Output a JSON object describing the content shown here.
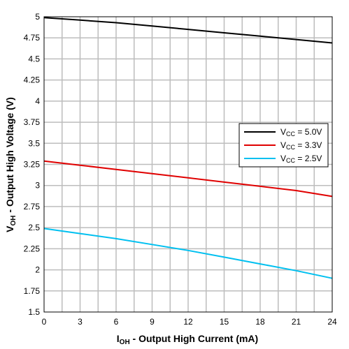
{
  "chart_data": {
    "type": "line",
    "xlabel": {
      "main": "I",
      "sub": "OH",
      "rest": " - Output High Current (mA)"
    },
    "ylabel": {
      "main": "V",
      "sub": "OH",
      "rest": " - Output High Voltage (V)"
    },
    "xlim": [
      0,
      24
    ],
    "ylim": [
      1.5,
      5
    ],
    "xticks": [
      0,
      3,
      6,
      9,
      12,
      15,
      18,
      21,
      24
    ],
    "yticks": [
      1.5,
      1.75,
      2,
      2.25,
      2.5,
      2.75,
      3,
      3.25,
      3.5,
      3.75,
      4,
      4.25,
      4.5,
      4.75,
      5
    ],
    "grid": true,
    "legend_position": "right",
    "x": [
      0,
      3,
      6,
      9,
      12,
      15,
      18,
      21,
      24
    ],
    "series": [
      {
        "name_main": "V",
        "name_sub": "CC",
        "name_rest": " = 5.0V",
        "color": "#000000",
        "values": [
          4.99,
          4.96,
          4.93,
          4.89,
          4.85,
          4.81,
          4.77,
          4.73,
          4.69
        ]
      },
      {
        "name_main": "V",
        "name_sub": "CC",
        "name_rest": " = 3.3V",
        "color": "#e00000",
        "values": [
          3.29,
          3.24,
          3.19,
          3.14,
          3.09,
          3.04,
          2.99,
          2.94,
          2.87
        ]
      },
      {
        "name_main": "V",
        "name_sub": "CC",
        "name_rest": " = 2.5V",
        "color": "#00c0f0",
        "values": [
          2.49,
          2.43,
          2.37,
          2.3,
          2.23,
          2.15,
          2.07,
          1.99,
          1.9
        ]
      }
    ]
  }
}
